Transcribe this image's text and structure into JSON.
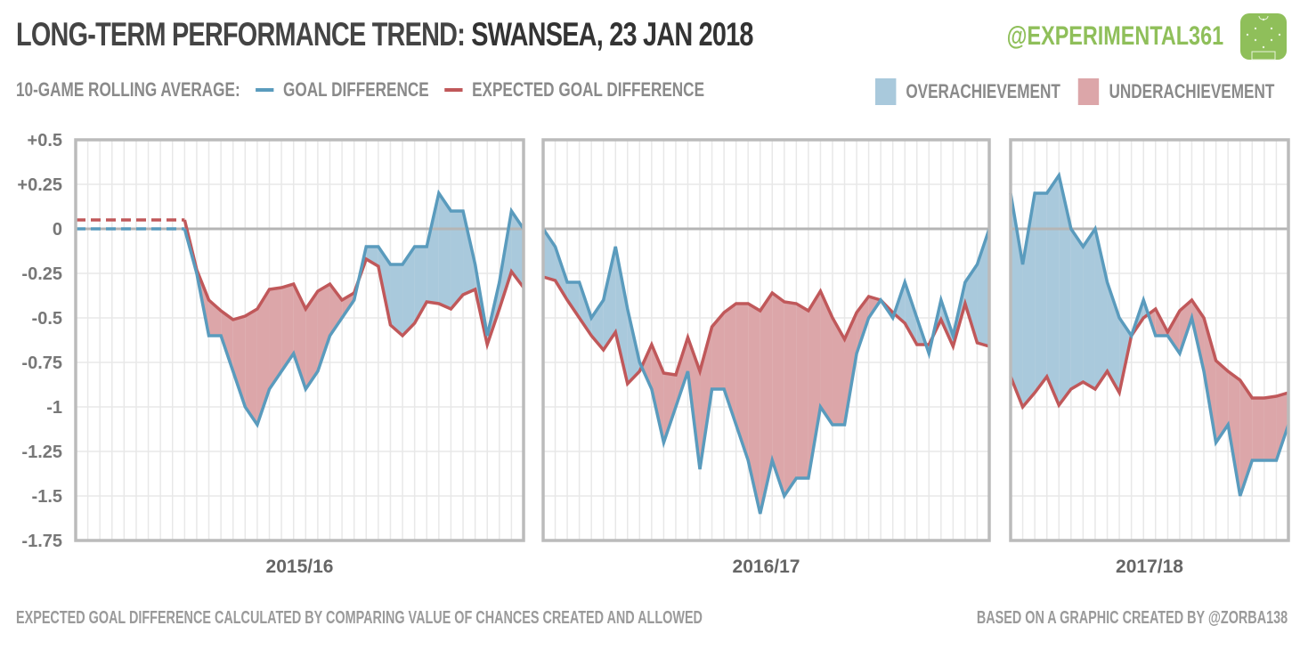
{
  "header": {
    "title_prefix": "LONG-TERM PERFORMANCE TREND: ",
    "title_team": "SWANSEA, 23 JAN 2018",
    "handle": "@EXPERIMENTAL361",
    "logo_icon": "football-pitch-icon"
  },
  "legend": {
    "intro": "10-GAME ROLLING AVERAGE:",
    "goal_difference": "GOAL DIFFERENCE",
    "expected_goal_difference": "EXPECTED GOAL DIFFERENCE",
    "overachievement": "OVERACHIEVEMENT",
    "underachievement": "UNDERACHIEVEMENT"
  },
  "footer": {
    "left": "EXPECTED GOAL DIFFERENCE CALCULATED BY COMPARING VALUE OF CHANCES CREATED AND ALLOWED",
    "right": "BASED ON A GRAPHIC CREATED BY @ZORBA138"
  },
  "colors": {
    "goal_difference": "#5a9bbd",
    "expected_goal_difference": "#c0585a",
    "overachievement": "#a9c9dc",
    "underachievement": "#dca6a9",
    "handle": "#8fbf5a",
    "frame": "#bbbbbb",
    "grid": "#e8e8e8",
    "zero_line": "#b5b5b5"
  },
  "chart_data": {
    "type": "line",
    "title": "LONG-TERM PERFORMANCE TREND: SWANSEA, 23 JAN 2018",
    "ylabel": "10-game rolling average",
    "ylim": [
      -1.75,
      0.5
    ],
    "yticks": [
      0.5,
      0.25,
      0,
      -0.25,
      -0.5,
      -0.75,
      -1,
      -1.25,
      -1.5,
      -1.75
    ],
    "ytick_labels": [
      "+0.5",
      "+0.25",
      "0",
      "-0.25",
      "-0.5",
      "-0.75",
      "-1",
      "-1.25",
      "-1.5",
      "-1.75"
    ],
    "grid": true,
    "legend_position": "top",
    "fill_between": {
      "above": "OVERACHIEVEMENT",
      "below": "UNDERACHIEVEMENT"
    },
    "panels": [
      {
        "season": "2015/16",
        "games": 38,
        "dashed_until": 9,
        "series": [
          {
            "name": "GOAL DIFFERENCE",
            "values": [
              0,
              0,
              0,
              0,
              0,
              0,
              0,
              0,
              0,
              0,
              -0.25,
              -0.6,
              -0.6,
              -0.8,
              -1.0,
              -1.1,
              -0.9,
              -0.8,
              -0.7,
              -0.9,
              -0.8,
              -0.6,
              -0.5,
              -0.4,
              -0.1,
              -0.1,
              -0.2,
              -0.2,
              -0.1,
              -0.1,
              0.2,
              0.1,
              0.1,
              -0.2,
              -0.6,
              -0.3,
              0.1,
              0.0
            ]
          },
          {
            "name": "EXPECTED GOAL DIFFERENCE",
            "values": [
              0.05,
              0.05,
              0.05,
              0.05,
              0.05,
              0.05,
              0.05,
              0.05,
              0.05,
              0.05,
              -0.23,
              -0.4,
              -0.46,
              -0.51,
              -0.49,
              -0.45,
              -0.34,
              -0.33,
              -0.31,
              -0.45,
              -0.35,
              -0.31,
              -0.4,
              -0.36,
              -0.17,
              -0.21,
              -0.54,
              -0.6,
              -0.53,
              -0.41,
              -0.42,
              -0.45,
              -0.37,
              -0.34,
              -0.65,
              -0.45,
              -0.24,
              -0.33
            ]
          }
        ]
      },
      {
        "season": "2016/17",
        "games": 38,
        "dashed_until": 0,
        "series": [
          {
            "name": "GOAL DIFFERENCE",
            "values": [
              0.0,
              -0.1,
              -0.3,
              -0.3,
              -0.5,
              -0.4,
              -0.1,
              -0.45,
              -0.75,
              -0.9,
              -1.2,
              -1.0,
              -0.8,
              -1.35,
              -0.9,
              -0.9,
              -1.1,
              -1.3,
              -1.6,
              -1.3,
              -1.5,
              -1.4,
              -1.4,
              -1.0,
              -1.1,
              -1.1,
              -0.7,
              -0.5,
              -0.4,
              -0.5,
              -0.3,
              -0.5,
              -0.7,
              -0.4,
              -0.6,
              -0.3,
              -0.2,
              0.0
            ]
          },
          {
            "name": "EXPECTED GOAL DIFFERENCE",
            "values": [
              -0.27,
              -0.29,
              -0.4,
              -0.5,
              -0.6,
              -0.68,
              -0.58,
              -0.87,
              -0.8,
              -0.65,
              -0.81,
              -0.82,
              -0.61,
              -0.8,
              -0.55,
              -0.47,
              -0.42,
              -0.42,
              -0.46,
              -0.36,
              -0.41,
              -0.42,
              -0.46,
              -0.35,
              -0.5,
              -0.62,
              -0.47,
              -0.38,
              -0.4,
              -0.47,
              -0.53,
              -0.65,
              -0.65,
              -0.51,
              -0.66,
              -0.42,
              -0.64,
              -0.66
            ]
          }
        ]
      },
      {
        "season": "2017/18",
        "games": 24,
        "dashed_until": 0,
        "series": [
          {
            "name": "GOAL DIFFERENCE",
            "values": [
              0.2,
              -0.2,
              0.2,
              0.2,
              0.3,
              0.0,
              -0.1,
              0.0,
              -0.3,
              -0.5,
              -0.6,
              -0.4,
              -0.6,
              -0.6,
              -0.7,
              -0.5,
              -0.8,
              -1.2,
              -1.1,
              -1.5,
              -1.3,
              -1.3,
              -1.3,
              -1.1
            ]
          },
          {
            "name": "EXPECTED GOAL DIFFERENCE",
            "values": [
              -0.83,
              -1.0,
              -0.92,
              -0.83,
              -0.99,
              -0.9,
              -0.86,
              -0.9,
              -0.8,
              -0.92,
              -0.6,
              -0.5,
              -0.45,
              -0.58,
              -0.46,
              -0.4,
              -0.5,
              -0.74,
              -0.8,
              -0.85,
              -0.95,
              -0.95,
              -0.94,
              -0.92
            ]
          }
        ]
      }
    ]
  }
}
